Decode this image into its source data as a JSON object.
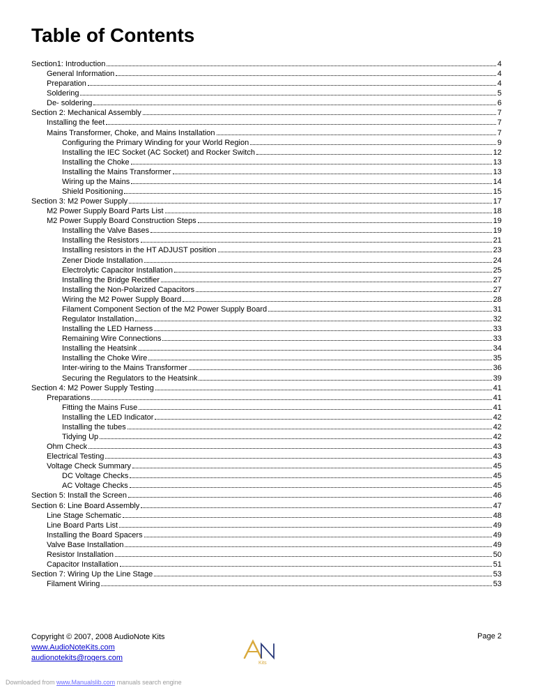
{
  "title": "Table of Contents",
  "toc": [
    {
      "level": 0,
      "label": "Section1: Introduction",
      "page": "4"
    },
    {
      "level": 1,
      "label": "General Information",
      "page": "4"
    },
    {
      "level": 1,
      "label": "Preparation",
      "page": "4"
    },
    {
      "level": 1,
      "label": "Soldering",
      "page": "5"
    },
    {
      "level": 1,
      "label": "De- soldering",
      "page": "6"
    },
    {
      "level": 0,
      "label": "Section 2: Mechanical Assembly",
      "page": "7"
    },
    {
      "level": 1,
      "label": "Installing the feet",
      "page": "7"
    },
    {
      "level": 1,
      "label": "Mains Transformer, Choke, and Mains Installation",
      "page": "7"
    },
    {
      "level": 2,
      "label": "Configuring the Primary Winding for your World Region",
      "page": "9"
    },
    {
      "level": 2,
      "label": "Installing the IEC Socket (AC Socket) and Rocker Switch",
      "page": "12"
    },
    {
      "level": 2,
      "label": "Installing the Choke",
      "page": "13"
    },
    {
      "level": 2,
      "label": "Installing the Mains Transformer",
      "page": "13"
    },
    {
      "level": 2,
      "label": "Wiring up the Mains",
      "page": "14"
    },
    {
      "level": 2,
      "label": "Shield Positioning",
      "page": "15"
    },
    {
      "level": 0,
      "label": "Section 3: M2 Power Supply",
      "page": "17"
    },
    {
      "level": 1,
      "label": "M2 Power Supply Board Parts List",
      "page": "18"
    },
    {
      "level": 1,
      "label": "M2 Power Supply Board Construction Steps",
      "page": "19"
    },
    {
      "level": 2,
      "label": "Installing the Valve Bases",
      "page": "19"
    },
    {
      "level": 2,
      "label": "Installing the Resistors",
      "page": "21"
    },
    {
      "level": 2,
      "label": "Installing resistors in the HT ADJUST position",
      "page": "23"
    },
    {
      "level": 2,
      "label": "Zener Diode Installation",
      "page": "24"
    },
    {
      "level": 2,
      "label": "Electrolytic Capacitor Installation",
      "page": "25"
    },
    {
      "level": 2,
      "label": "Installing the Bridge Rectifier",
      "page": "27"
    },
    {
      "level": 2,
      "label": "Installing the Non-Polarized Capacitors",
      "page": "27"
    },
    {
      "level": 2,
      "label": "Wiring the M2 Power Supply Board",
      "page": "28"
    },
    {
      "level": 2,
      "label": "Filament Component Section of the M2 Power Supply Board",
      "page": "31"
    },
    {
      "level": 2,
      "label": "Regulator Installation",
      "page": "32"
    },
    {
      "level": 2,
      "label": "Installing the LED Harness",
      "page": "33"
    },
    {
      "level": 2,
      "label": "Remaining Wire Connections",
      "page": "33"
    },
    {
      "level": 2,
      "label": "Installing the Heatsink",
      "page": "34"
    },
    {
      "level": 2,
      "label": "Installing the Choke Wire",
      "page": "35"
    },
    {
      "level": 2,
      "label": "Inter-wiring to the Mains Transformer",
      "page": "36"
    },
    {
      "level": 2,
      "label": "Securing the Regulators to the Heatsink",
      "page": "39"
    },
    {
      "level": 0,
      "label": "Section 4: M2 Power Supply Testing",
      "page": "41"
    },
    {
      "level": 1,
      "label": "Preparations",
      "page": "41"
    },
    {
      "level": 2,
      "label": "Fitting the Mains Fuse",
      "page": "41"
    },
    {
      "level": 2,
      "label": "Installing the LED Indicator",
      "page": "42"
    },
    {
      "level": 2,
      "label": "Installing the tubes",
      "page": "42"
    },
    {
      "level": 2,
      "label": "Tidying Up",
      "page": "42"
    },
    {
      "level": 1,
      "label": "Ohm Check",
      "page": "43"
    },
    {
      "level": 1,
      "label": "Electrical Testing",
      "page": "43"
    },
    {
      "level": 1,
      "label": "Voltage Check Summary",
      "page": "45"
    },
    {
      "level": 2,
      "label": "DC Voltage Checks",
      "page": "45"
    },
    {
      "level": 2,
      "label": "AC Voltage Checks",
      "page": "45"
    },
    {
      "level": 0,
      "label": "Section 5: Install the Screen",
      "page": "46"
    },
    {
      "level": 0,
      "label": "Section 6: Line Board Assembly",
      "page": "47"
    },
    {
      "level": 1,
      "label": "Line Stage Schematic",
      "page": "48"
    },
    {
      "level": 1,
      "label": "Line Board Parts List",
      "page": "49"
    },
    {
      "level": 1,
      "label": "Installing the Board Spacers",
      "page": "49"
    },
    {
      "level": 1,
      "label": "Valve Base Installation",
      "page": "49"
    },
    {
      "level": 1,
      "label": "Resistor Installation",
      "page": "50"
    },
    {
      "level": 1,
      "label": "Capacitor Installation",
      "page": "51"
    },
    {
      "level": 0,
      "label": "Section 7: Wiring Up the Line Stage",
      "page": "53"
    },
    {
      "level": 1,
      "label": "Filament Wiring",
      "page": "53"
    }
  ],
  "footer": {
    "copyright": "Copyright © 2007, 2008 AudioNote Kits",
    "link1": "www.AudioNoteKits.com",
    "link2": "audionotekits@rogers.com",
    "page_label": "Page 2",
    "logo_text": "Kits",
    "logo_color_a": "#d9a93c",
    "logo_color_n": "#2a3a7a"
  },
  "download": {
    "prefix": "Downloaded from ",
    "link": "www.Manualslib.com",
    "suffix": " manuals search engine"
  }
}
